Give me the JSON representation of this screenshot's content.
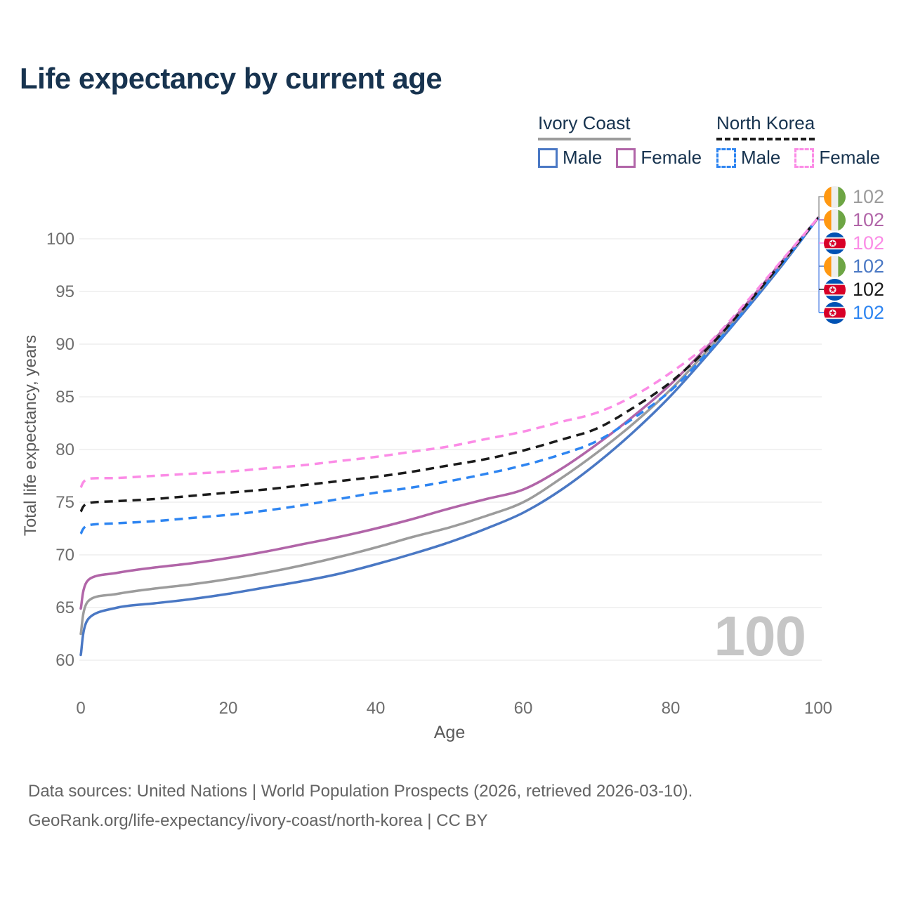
{
  "title": "Life expectancy by current age",
  "legend": {
    "groups": [
      {
        "name": "Ivory Coast",
        "line_style": "solid",
        "underline_color": "#9c9c9c",
        "items": [
          {
            "label": "Male",
            "color": "#4a78c4",
            "dashed": false
          },
          {
            "label": "Female",
            "color": "#b165a8",
            "dashed": false
          }
        ]
      },
      {
        "name": "North Korea",
        "line_style": "dashed",
        "underline_color": "#1b1b1b",
        "items": [
          {
            "label": "Male",
            "color": "#2e85f1",
            "dashed": true
          },
          {
            "label": "Female",
            "color": "#fb8ce6",
            "dashed": true
          }
        ]
      }
    ]
  },
  "chart_data": {
    "type": "line",
    "title": "Life expectancy by current age",
    "xlabel": "Age",
    "ylabel": "Total life expectancy, years",
    "xlim": [
      0,
      100
    ],
    "ylim": [
      60,
      102
    ],
    "x_ticks": [
      0,
      20,
      40,
      60,
      80,
      100
    ],
    "y_ticks": [
      60,
      65,
      70,
      75,
      80,
      85,
      90,
      95,
      100
    ],
    "grid": "horizontal",
    "legend_position": "top-right",
    "watermark": "100",
    "x": [
      0,
      1,
      5,
      10,
      15,
      20,
      25,
      30,
      35,
      40,
      45,
      50,
      55,
      60,
      65,
      70,
      75,
      80,
      85,
      90,
      95,
      100
    ],
    "series": [
      {
        "id": "ic-male",
        "country": "Ivory Coast",
        "sex": "Male",
        "color": "#4a78c4",
        "dashed": false,
        "flag": "ivory-coast",
        "values": [
          60.5,
          63.9,
          65.0,
          65.4,
          65.8,
          66.3,
          66.9,
          67.5,
          68.2,
          69.1,
          70.1,
          71.2,
          72.5,
          74.0,
          76.1,
          78.7,
          81.7,
          85.1,
          89.0,
          93.1,
          97.4,
          102
        ]
      },
      {
        "id": "ic-average",
        "country": "Ivory Coast",
        "sex": "Both sexes",
        "color": "#9c9c9c",
        "dashed": false,
        "flag": "ivory-coast",
        "values": [
          62.5,
          65.6,
          66.3,
          66.8,
          67.2,
          67.7,
          68.3,
          69.0,
          69.8,
          70.7,
          71.7,
          72.6,
          73.7,
          75.0,
          77.2,
          79.7,
          82.5,
          85.7,
          89.4,
          93.4,
          97.6,
          102
        ]
      },
      {
        "id": "ic-female",
        "country": "Ivory Coast",
        "sex": "Female",
        "color": "#b165a8",
        "dashed": false,
        "flag": "ivory-coast",
        "values": [
          64.9,
          67.6,
          68.3,
          68.8,
          69.2,
          69.7,
          70.3,
          71.0,
          71.7,
          72.5,
          73.4,
          74.4,
          75.3,
          76.2,
          78.1,
          80.5,
          83.2,
          86.2,
          89.8,
          93.6,
          97.8,
          102
        ]
      },
      {
        "id": "nk-male",
        "country": "North Korea",
        "sex": "Male",
        "color": "#2e85f1",
        "dashed": true,
        "flag": "north-korea",
        "values": [
          72.0,
          72.8,
          73.0,
          73.2,
          73.5,
          73.8,
          74.2,
          74.7,
          75.3,
          75.9,
          76.4,
          77.0,
          77.7,
          78.5,
          79.5,
          80.8,
          83.0,
          85.6,
          89.2,
          93.2,
          97.5,
          102
        ]
      },
      {
        "id": "nk-average",
        "country": "North Korea",
        "sex": "Both sexes",
        "color": "#1b1b1b",
        "dashed": true,
        "flag": "north-korea",
        "values": [
          74.1,
          74.9,
          75.1,
          75.3,
          75.6,
          75.9,
          76.2,
          76.6,
          77.0,
          77.4,
          77.9,
          78.5,
          79.1,
          79.9,
          80.9,
          82.0,
          84.0,
          86.4,
          89.6,
          93.5,
          97.7,
          102
        ]
      },
      {
        "id": "nk-female",
        "country": "North Korea",
        "sex": "Female",
        "color": "#fb8ce6",
        "dashed": true,
        "flag": "north-korea",
        "values": [
          76.4,
          77.2,
          77.3,
          77.5,
          77.7,
          77.9,
          78.2,
          78.5,
          78.9,
          79.3,
          79.8,
          80.3,
          81.0,
          81.7,
          82.6,
          83.5,
          85.1,
          87.3,
          90.0,
          93.8,
          97.9,
          102
        ]
      }
    ],
    "end_labels": [
      {
        "series": "ic-average",
        "value": "102",
        "flag": "ivory-coast",
        "color": "#9c9c9c"
      },
      {
        "series": "ic-female",
        "value": "102",
        "flag": "ivory-coast",
        "color": "#b165a8"
      },
      {
        "series": "nk-female",
        "value": "102",
        "flag": "north-korea",
        "color": "#fb8ce6"
      },
      {
        "series": "ic-male",
        "value": "102",
        "flag": "ivory-coast",
        "color": "#4a78c4"
      },
      {
        "series": "nk-average",
        "value": "102",
        "flag": "north-korea",
        "color": "#1b1b1b"
      },
      {
        "series": "nk-male",
        "value": "102",
        "flag": "north-korea",
        "color": "#2e85f1"
      }
    ],
    "flag_colors": {
      "ivory_coast": {
        "orange": "#FF9811",
        "white": "#EEEEEE",
        "green": "#6DA544"
      },
      "north_korea": {
        "blue": "#0052B4",
        "white": "#EEEEEE",
        "red": "#D80027"
      }
    }
  },
  "footer": {
    "line1": "Data sources: United Nations | World Population Prospects (2026, retrieved 2026-03-10).",
    "line2": "GeoRank.org/life-expectancy/ivory-coast/north-korea | CC BY"
  }
}
